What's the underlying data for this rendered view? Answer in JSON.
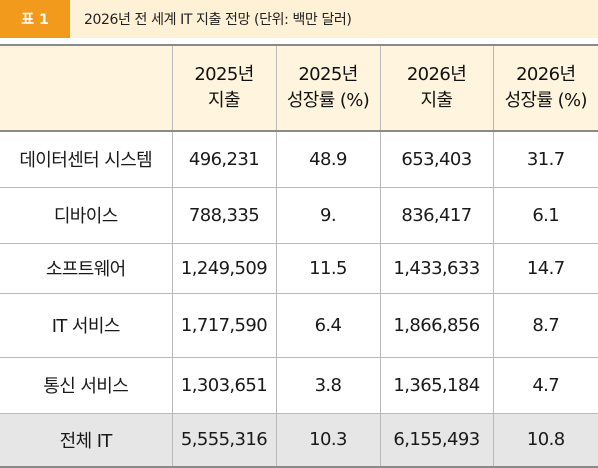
{
  "caption": {
    "tag": "표 1",
    "title": "2026년 전 세계 IT 지출 전망 (단위: 백만 달러)"
  },
  "table": {
    "headers": [
      {
        "line1": "",
        "line2": ""
      },
      {
        "line1": "2025년",
        "line2": "지출"
      },
      {
        "line1": "2025년",
        "line2": "성장률 (%)"
      },
      {
        "line1": "2026년",
        "line2": "지출"
      },
      {
        "line1": "2026년",
        "line2": "성장률 (%)"
      }
    ],
    "rows": [
      [
        "데이터센터 시스템",
        "496,231",
        "48.9",
        "653,403",
        "31.7"
      ],
      [
        "디바이스",
        "788,335",
        "9.",
        "836,417",
        "6.1"
      ],
      [
        "소프트웨어",
        "1,249,509",
        "11.5",
        "1,433,633",
        "14.7"
      ],
      [
        "IT 서비스",
        "1,717,590",
        "6.4",
        "1,866,856",
        "8.7"
      ],
      [
        "통신 서비스",
        "1,303,651",
        "3.8",
        "1,365,184",
        "4.7"
      ]
    ],
    "total": [
      "전체 IT",
      "5,555,316",
      "10.3",
      "6,155,493",
      "10.8"
    ]
  },
  "colors": {
    "tag_background": "#f29a1c",
    "caption_background": "#fff1d6",
    "header_background": "#fff4dd",
    "total_background": "#e6e6e6"
  }
}
